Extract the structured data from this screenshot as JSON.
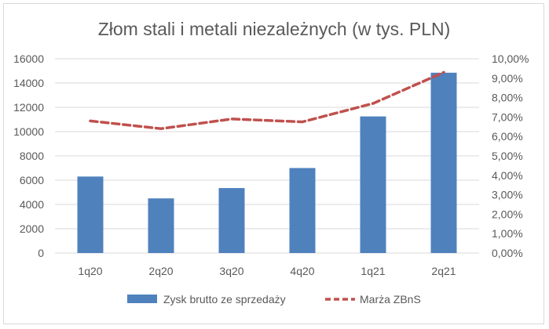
{
  "chart_data": {
    "type": "bar",
    "title": "Złom stali i metali niezależnych (w tys. PLN)",
    "categories": [
      "1q20",
      "2q20",
      "3q20",
      "4q20",
      "1q21",
      "2q21"
    ],
    "series": [
      {
        "name": "Zysk brutto ze sprzedaży",
        "type": "bar",
        "axis": "left",
        "color": "#4f81bd",
        "values": [
          6300,
          4500,
          5350,
          7000,
          11250,
          14850
        ]
      },
      {
        "name": "Marża ZBnS",
        "type": "line",
        "axis": "right",
        "color": "#c0504d",
        "style": "dashed",
        "values": [
          0.068,
          0.064,
          0.069,
          0.0675,
          0.077,
          0.093
        ]
      }
    ],
    "y_left": {
      "min": 0,
      "max": 16000,
      "ticks": [
        "0",
        "2000",
        "4000",
        "6000",
        "8000",
        "10000",
        "12000",
        "14000",
        "16000"
      ]
    },
    "y_right": {
      "min": 0,
      "max": 0.1,
      "ticks": [
        "0,00%",
        "1,00%",
        "2,00%",
        "3,00%",
        "4,00%",
        "5,00%",
        "6,00%",
        "7,00%",
        "8,00%",
        "9,00%",
        "10,00%"
      ]
    },
    "grid": "horizontal",
    "legend_position": "bottom"
  }
}
